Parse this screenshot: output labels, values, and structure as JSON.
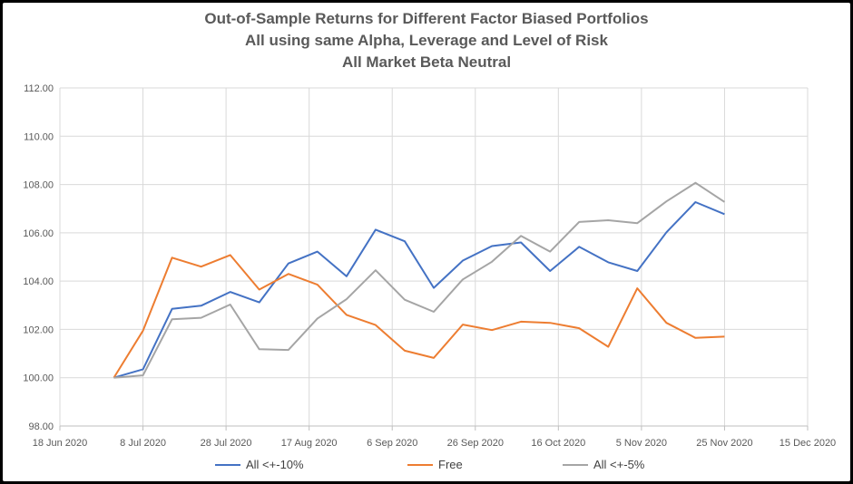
{
  "chart_data": {
    "type": "line",
    "title": [
      "Out-of-Sample Returns for Different Factor Biased Portfolios",
      "All using same Alpha, Leverage and Level of Risk",
      "All Market Beta Neutral"
    ],
    "xlabel": "",
    "ylabel": "",
    "ylim": [
      98,
      112
    ],
    "yticks": [
      "98.00",
      "100.00",
      "102.00",
      "104.00",
      "106.00",
      "108.00",
      "110.00",
      "112.00"
    ],
    "xlim": [
      "2020-06-18",
      "2020-12-15"
    ],
    "xticks": [
      {
        "date": "2020-06-18",
        "label": "18 Jun 2020"
      },
      {
        "date": "2020-07-08",
        "label": "8 Jul 2020"
      },
      {
        "date": "2020-07-28",
        "label": "28 Jul 2020"
      },
      {
        "date": "2020-08-17",
        "label": "17 Aug 2020"
      },
      {
        "date": "2020-09-06",
        "label": "6 Sep 2020"
      },
      {
        "date": "2020-09-26",
        "label": "26 Sep 2020"
      },
      {
        "date": "2020-10-16",
        "label": "16 Oct 2020"
      },
      {
        "date": "2020-11-05",
        "label": "5 Nov 2020"
      },
      {
        "date": "2020-11-25",
        "label": "25 Nov 2020"
      },
      {
        "date": "2020-12-15",
        "label": "15 Dec 2020"
      }
    ],
    "grid": true,
    "legend_position": "bottom",
    "x": [
      "2020-07-01",
      "2020-07-08",
      "2020-07-15",
      "2020-07-22",
      "2020-07-29",
      "2020-08-05",
      "2020-08-12",
      "2020-08-19",
      "2020-08-26",
      "2020-09-02",
      "2020-09-09",
      "2020-09-16",
      "2020-09-23",
      "2020-09-30",
      "2020-10-07",
      "2020-10-14",
      "2020-10-21",
      "2020-10-28",
      "2020-11-04",
      "2020-11-11",
      "2020-11-18",
      "2020-11-25"
    ],
    "series": [
      {
        "name": "All <+-10%",
        "color": "#4472C4",
        "values": [
          100.0,
          100.35,
          102.85,
          102.98,
          103.55,
          103.12,
          104.73,
          105.22,
          104.2,
          106.13,
          105.65,
          103.72,
          104.85,
          105.45,
          105.6,
          104.42,
          105.42,
          104.78,
          104.42,
          106.02,
          107.27,
          106.77
        ]
      },
      {
        "name": "Free",
        "color": "#ED7D31",
        "values": [
          100.0,
          101.95,
          104.97,
          104.6,
          105.08,
          103.65,
          104.3,
          103.85,
          102.6,
          102.18,
          101.12,
          100.82,
          102.2,
          101.97,
          102.32,
          102.27,
          102.05,
          101.28,
          103.7,
          102.27,
          101.65,
          101.7
        ]
      },
      {
        "name": "All <+-5%",
        "color": "#A5A5A5",
        "values": [
          100.0,
          100.1,
          102.42,
          102.48,
          103.03,
          101.18,
          101.15,
          102.45,
          103.25,
          104.45,
          103.23,
          102.73,
          104.07,
          104.8,
          105.87,
          105.22,
          106.45,
          106.52,
          106.4,
          107.3,
          108.07,
          107.28
        ]
      }
    ]
  }
}
